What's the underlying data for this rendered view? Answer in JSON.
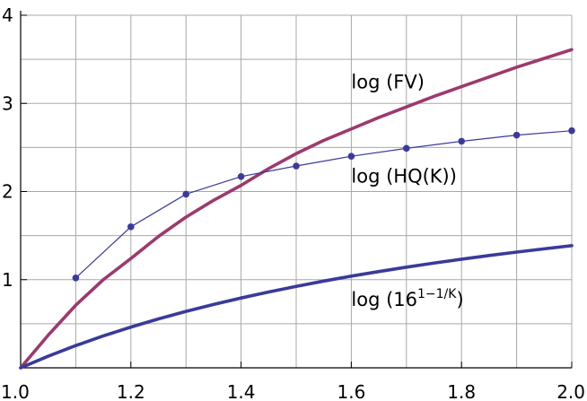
{
  "chart_data": {
    "type": "line",
    "title": "",
    "xlabel": "",
    "ylabel": "",
    "xlim": [
      1.0,
      2.0
    ],
    "ylim": [
      0,
      4
    ],
    "x_ticks": [
      "1.0",
      "1.2",
      "1.4",
      "1.6",
      "1.8",
      "2.0"
    ],
    "y_ticks": [
      "1",
      "2",
      "3",
      "4"
    ],
    "grid": true,
    "series": [
      {
        "key": "fv",
        "color": "#9b3a6e",
        "x": [
          1.0,
          1.05,
          1.1,
          1.15,
          1.2,
          1.25,
          1.3,
          1.35,
          1.4,
          1.45,
          1.5,
          1.55,
          1.6,
          1.65,
          1.7,
          1.75,
          1.8,
          1.85,
          1.9,
          1.95,
          2.0
        ],
        "y": [
          0.0,
          0.37,
          0.71,
          1.0,
          1.24,
          1.49,
          1.71,
          1.9,
          2.07,
          2.26,
          2.43,
          2.58,
          2.71,
          2.84,
          2.96,
          3.08,
          3.19,
          3.3,
          3.41,
          3.51,
          3.61
        ]
      },
      {
        "key": "hq",
        "color": "#3a3a9b",
        "markers": true,
        "x": [
          1.1,
          1.2,
          1.3,
          1.4,
          1.5,
          1.6,
          1.7,
          1.8,
          1.9,
          2.0
        ],
        "y": [
          1.02,
          1.6,
          1.97,
          2.17,
          2.29,
          2.4,
          2.49,
          2.57,
          2.64,
          2.69
        ]
      },
      {
        "key": "pow16",
        "color": "#3a3a9b",
        "x": [
          1.0,
          1.05,
          1.1,
          1.15,
          1.2,
          1.25,
          1.3,
          1.35,
          1.4,
          1.45,
          1.5,
          1.55,
          1.6,
          1.65,
          1.7,
          1.75,
          1.8,
          1.85,
          1.9,
          1.95,
          2.0
        ],
        "y": [
          0.0,
          0.132,
          0.252,
          0.362,
          0.462,
          0.555,
          0.64,
          0.719,
          0.792,
          0.86,
          0.924,
          0.984,
          1.04,
          1.092,
          1.142,
          1.188,
          1.232,
          1.274,
          1.313,
          1.35,
          1.386
        ]
      }
    ],
    "annotations": {
      "fv": {
        "text": "log (FV)",
        "x": 1.6,
        "y": 3.17
      },
      "hq": {
        "text": "log (HQ(K))",
        "x": 1.6,
        "y": 2.1
      },
      "pow16": {
        "base": "log (16",
        "exponent": "1−1/K",
        "close": ")",
        "x": 1.6,
        "y": 0.7
      }
    }
  }
}
